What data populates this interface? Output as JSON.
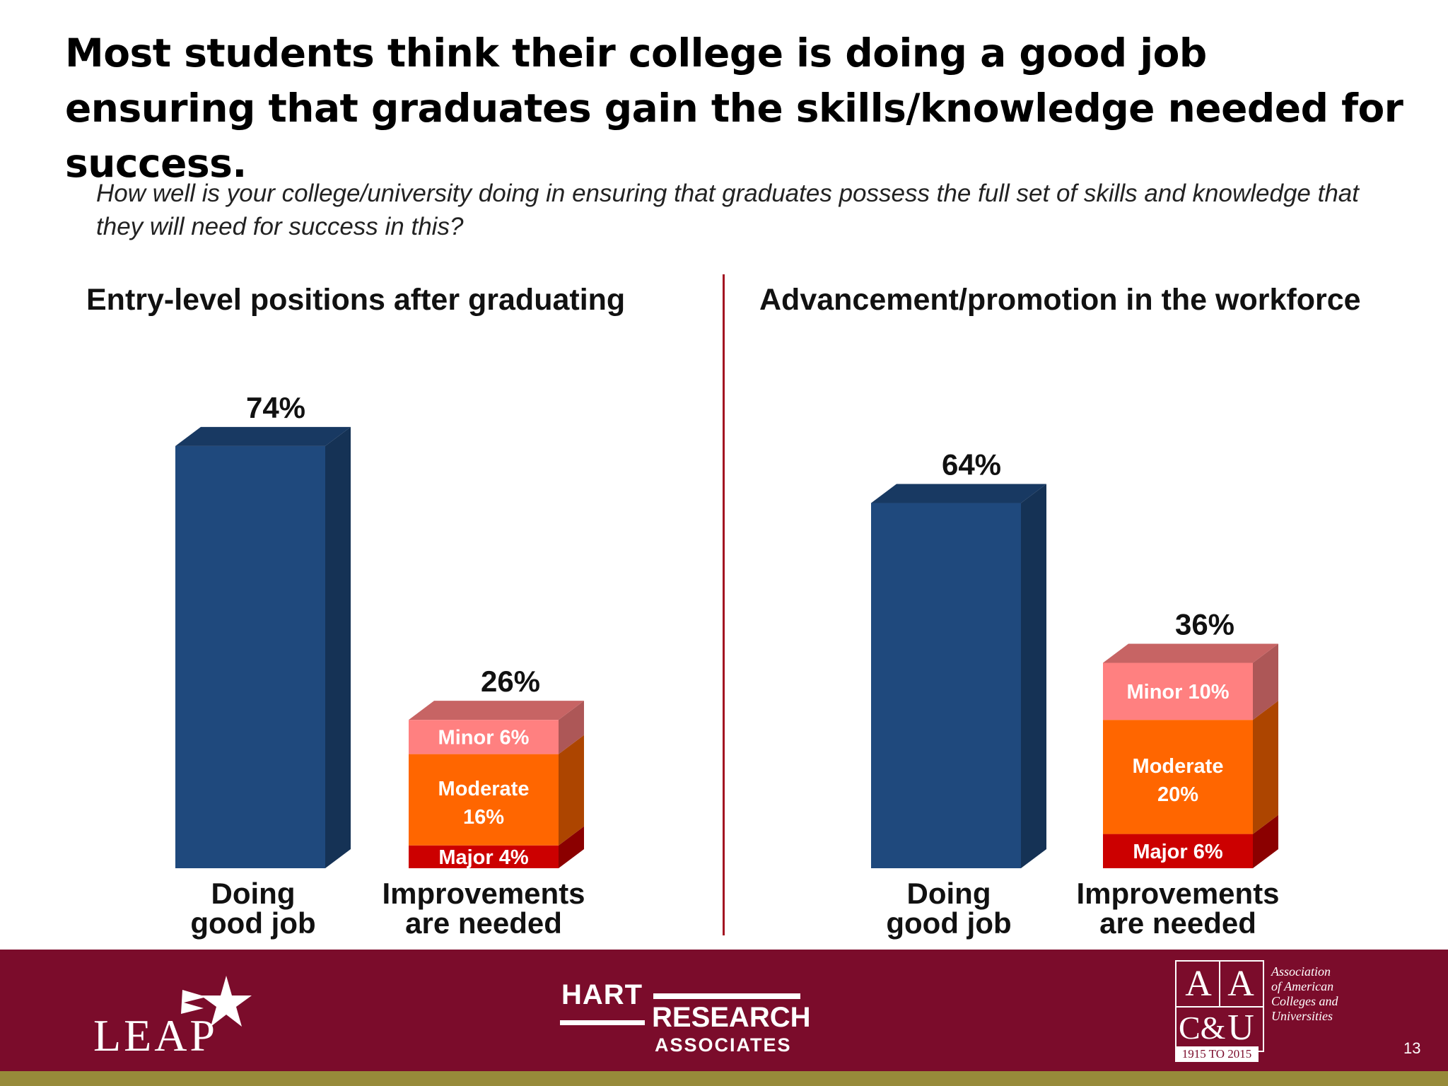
{
  "title": "Most students think their college is doing a good job ensuring that graduates gain the skills/knowledge needed for success.",
  "question": "How well is your college/university doing in ensuring that graduates possess the full set of skills and knowledge that they will need for success in this?",
  "colors": {
    "good": "#1f497d",
    "major": "#cc0000",
    "moderate": "#ff6600",
    "minor": "#ff8080",
    "divider": "#a31422",
    "footer": "#7b0c2b",
    "stripe": "#978a3a"
  },
  "chart_data": [
    {
      "type": "bar",
      "title": "Entry-level positions after graduating",
      "categories": [
        "Doing good job",
        "Improvements are needed"
      ],
      "totals": [
        74,
        26
      ],
      "total_labels": [
        "74%",
        "26%"
      ],
      "breakdown": [
        {
          "name": "Major",
          "value": 4,
          "label": "Major  4%"
        },
        {
          "name": "Moderate",
          "value": 16,
          "label_lines": [
            "Moderate",
            "16%"
          ]
        },
        {
          "name": "Minor",
          "value": 6,
          "label": "Minor  6%"
        }
      ]
    },
    {
      "type": "bar",
      "title": "Advancement/promotion in the workforce",
      "categories": [
        "Doing good job",
        "Improvements are needed"
      ],
      "totals": [
        64,
        36
      ],
      "total_labels": [
        "64%",
        "36%"
      ],
      "breakdown": [
        {
          "name": "Major",
          "value": 6,
          "label": "Major  6%"
        },
        {
          "name": "Moderate",
          "value": 20,
          "label_lines": [
            "Moderate",
            "20%"
          ]
        },
        {
          "name": "Minor",
          "value": 10,
          "label": "Minor  10%"
        }
      ]
    }
  ],
  "category_label_lines": [
    [
      "Doing",
      "good job"
    ],
    [
      "Improvements",
      "are needed"
    ]
  ],
  "footer": {
    "leap": "LEAP",
    "hart": "HART",
    "research": "RESEARCH",
    "associates": "ASSOCIATES",
    "aacu_letters": [
      "A",
      "A",
      "C&",
      "U"
    ],
    "aacu_name_lines": [
      "Association",
      "of American",
      "Colleges and",
      "Universities"
    ],
    "aacu_years": "1915 TO 2015",
    "page_number": "13"
  }
}
